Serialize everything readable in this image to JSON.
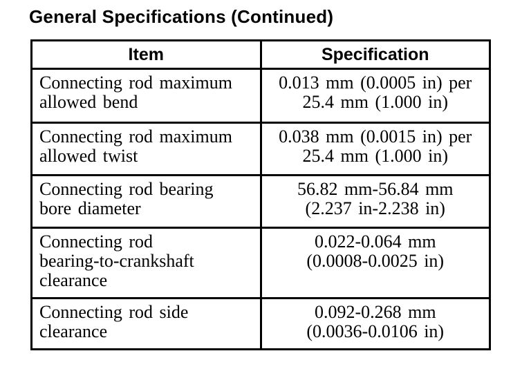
{
  "page": {
    "title": "General Specifications (Continued)"
  },
  "colors": {
    "text": "#000000",
    "border": "#000000",
    "background": "#ffffff"
  },
  "table": {
    "col_headers": {
      "item": "Item",
      "spec": "Specification"
    },
    "rows": [
      {
        "item": "Connecting rod maximum\nallowed bend",
        "spec": "0.013 mm (0.0005 in) per\n25.4 mm (1.000 in)"
      },
      {
        "item": "Connecting rod maximum\nallowed twist",
        "spec": "0.038 mm (0.0015 in) per\n25.4 mm (1.000 in)"
      },
      {
        "item": "Connecting rod bearing\nbore diameter",
        "spec": "56.82 mm-56.84 mm\n(2.237 in-2.238 in)"
      },
      {
        "item": "Connecting rod\nbearing-to-crankshaft\nclearance",
        "spec": "0.022-0.064 mm\n(0.0008-0.0025 in)"
      },
      {
        "item": "Connecting rod side\nclearance",
        "spec": "0.092-0.268 mm\n(0.0036-0.0106 in)"
      }
    ]
  }
}
